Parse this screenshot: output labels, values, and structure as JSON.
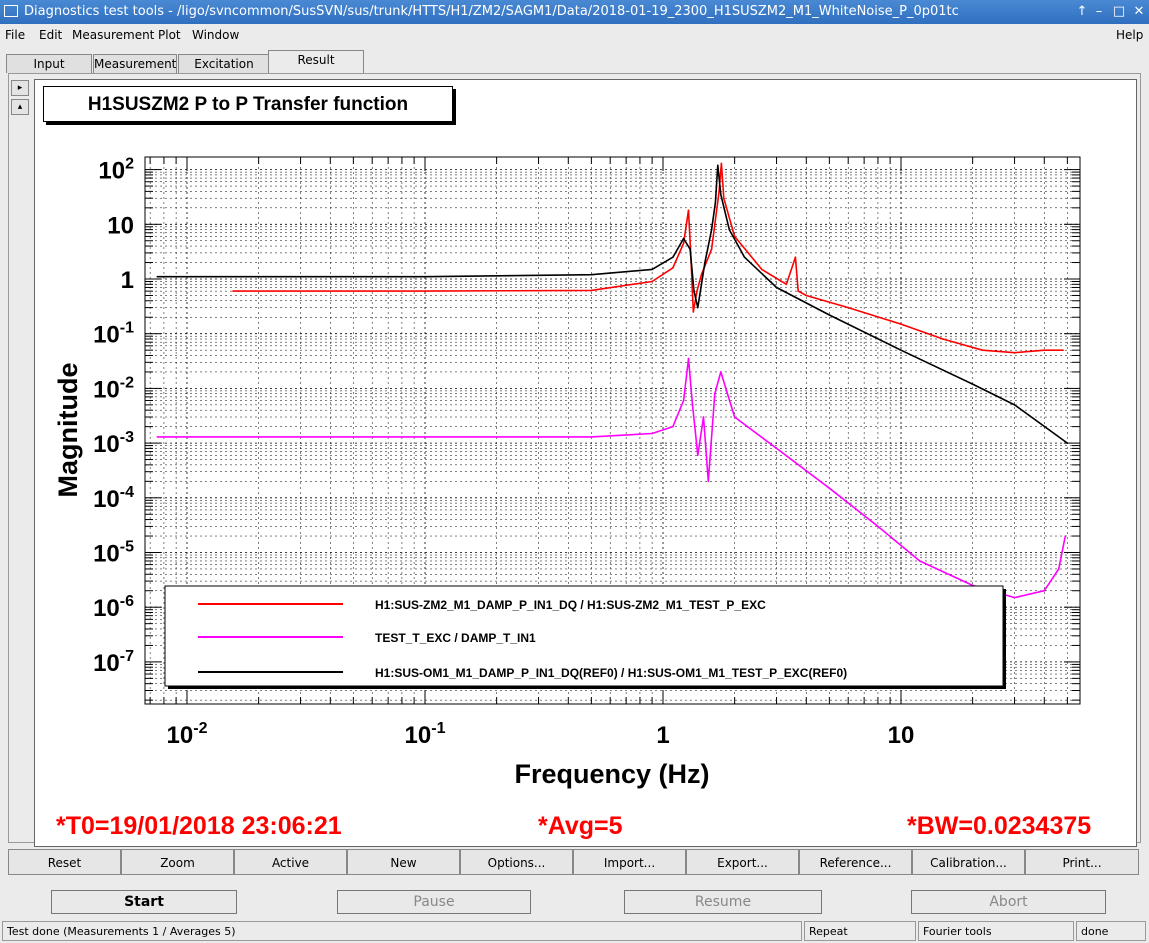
{
  "window": {
    "title": "Diagnostics test tools - /ligo/svncommon/SusSVN/sus/trunk/HTTS/H1/ZM2/SAGM1/Data/2018-01-19_2300_H1SUSZM2_M1_WhiteNoise_P_0p01tc",
    "controls": [
      "↑",
      "–",
      "□",
      "✕"
    ]
  },
  "menu": {
    "file": "File",
    "edit": "Edit",
    "measurement": "Measurement",
    "plot": "Plot",
    "window": "Window",
    "help": "Help"
  },
  "tabs": [
    "Input",
    "Measurement",
    "Excitation",
    "Result"
  ],
  "active_tab": "Result",
  "side_buttons": [
    "▸",
    "▴"
  ],
  "chart_data": {
    "type": "line",
    "title": "H1SUSZM2 P to P Transfer function",
    "xlabel": "Frequency (Hz)",
    "ylabel": "Magnitude",
    "xscale": "log",
    "yscale": "log",
    "xlim": [
      0.0075,
      50
    ],
    "ylim": [
      5e-08,
      200
    ],
    "x_tick_labels": [
      "10-2",
      "10-1",
      "1",
      "10"
    ],
    "y_tick_labels": [
      "102",
      "10",
      "1",
      "10-1",
      "10-2",
      "10-3",
      "10-4",
      "10-5",
      "10-6",
      "10-7"
    ],
    "grid": true,
    "legend_position": "bottom-left",
    "series": [
      {
        "name": "H1:SUS-ZM2_M1_DAMP_P_IN1_DQ / H1:SUS-ZM2_M1_TEST_P_EXC",
        "color": "#ff0000",
        "x": [
          0.0156,
          0.1,
          0.5,
          0.9,
          1.1,
          1.22,
          1.28,
          1.31,
          1.34,
          1.39,
          1.45,
          1.6,
          1.72,
          1.76,
          1.8,
          2.0,
          2.6,
          3.3,
          3.6,
          3.7,
          4.0,
          6.0,
          10,
          15,
          22,
          30,
          40,
          48
        ],
        "y": [
          0.6,
          0.6,
          0.62,
          0.9,
          1.6,
          4.5,
          18,
          2.5,
          0.25,
          0.6,
          1.2,
          3.5,
          40,
          130,
          30,
          6,
          1.5,
          0.8,
          2.5,
          0.6,
          0.5,
          0.3,
          0.15,
          0.08,
          0.05,
          0.045,
          0.05,
          0.05
        ]
      },
      {
        "name": "TEST_T_EXC / DAMP_T_IN1",
        "color": "#ff00ff",
        "x": [
          0.0075,
          0.1,
          0.5,
          0.9,
          1.1,
          1.22,
          1.28,
          1.33,
          1.4,
          1.48,
          1.55,
          1.65,
          1.75,
          2.0,
          3.0,
          5.0,
          8.0,
          12,
          20,
          30,
          40,
          46,
          49
        ],
        "y": [
          0.0013,
          0.0013,
          0.0013,
          0.0015,
          0.002,
          0.006,
          0.035,
          0.005,
          0.0006,
          0.003,
          0.0002,
          0.008,
          0.02,
          0.003,
          0.0008,
          0.00015,
          3e-05,
          7e-06,
          2.5e-06,
          1.5e-06,
          2e-06,
          5e-06,
          2e-05
        ]
      },
      {
        "name": "H1:SUS-OM1_M1_DAMP_P_IN1_DQ(REF0) / H1:SUS-OM1_M1_TEST_P_EXC(REF0)",
        "color": "#000000",
        "x": [
          0.0075,
          0.1,
          0.5,
          0.9,
          1.1,
          1.22,
          1.3,
          1.35,
          1.4,
          1.5,
          1.6,
          1.66,
          1.7,
          1.75,
          1.9,
          2.2,
          3.0,
          5.0,
          10,
          20,
          30,
          50
        ],
        "y": [
          1.1,
          1.1,
          1.2,
          1.5,
          2.5,
          5.5,
          3.5,
          0.6,
          0.3,
          2,
          8,
          25,
          120,
          35,
          8,
          2.5,
          0.7,
          0.22,
          0.05,
          0.012,
          0.005,
          0.001
        ]
      }
    ]
  },
  "stats": {
    "t0": "*T0=19/01/2018 23:06:21",
    "avg": "*Avg=5",
    "bw": "*BW=0.0234375"
  },
  "tool_buttons": [
    "Reset",
    "Zoom",
    "Active",
    "New",
    "Options...",
    "Import...",
    "Export...",
    "Reference...",
    "Calibration...",
    "Print..."
  ],
  "control_buttons": {
    "start": "Start",
    "pause": "Pause",
    "resume": "Resume",
    "abort": "Abort"
  },
  "statusbar": {
    "message": "Test done (Measurements 1 / Averages 5)",
    "mode": "Repeat",
    "tools": "Fourier tools",
    "state": "done"
  }
}
